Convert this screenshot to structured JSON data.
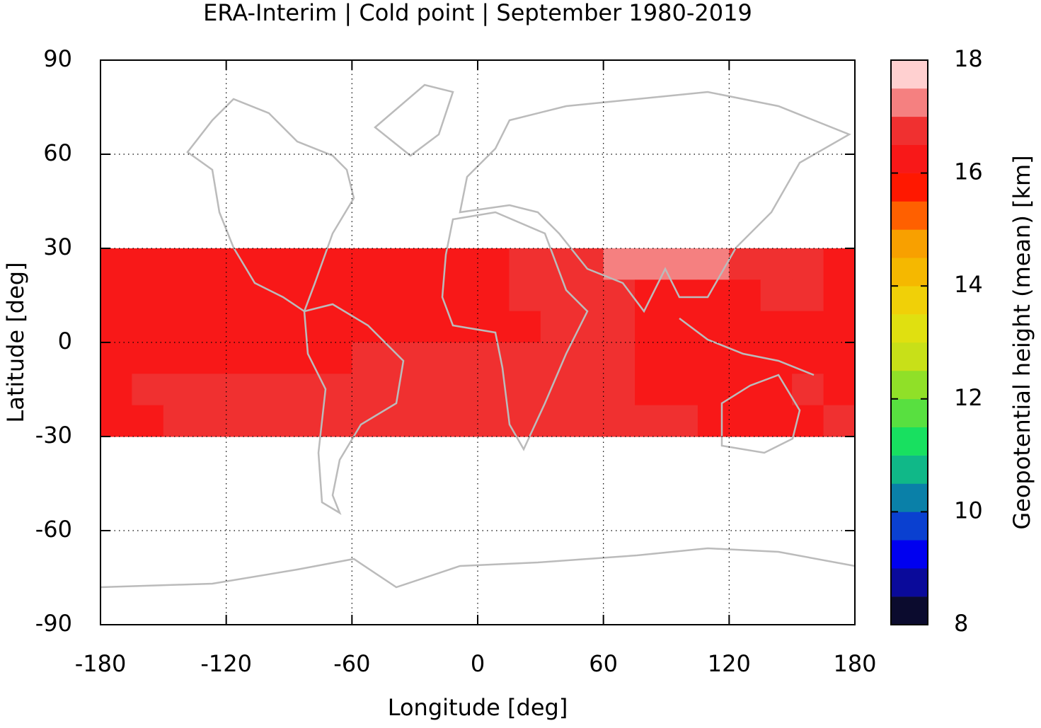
{
  "chart_data": {
    "type": "heatmap",
    "title": "ERA-Interim | Cold point | September 1980-2019",
    "xlabel": "Longitude [deg]",
    "ylabel": "Latitude [deg]",
    "xlim": [
      -180,
      180
    ],
    "ylim": [
      -90,
      90
    ],
    "xticks": [
      -180,
      -120,
      -60,
      0,
      60,
      120,
      180
    ],
    "yticks": [
      -90,
      -60,
      -30,
      0,
      30,
      60,
      90
    ],
    "grid": true,
    "x": [
      -172.5,
      -157.5,
      -142.5,
      -127.5,
      -112.5,
      -97.5,
      -82.5,
      -67.5,
      -52.5,
      -37.5,
      -22.5,
      -7.5,
      7.5,
      22.5,
      37.5,
      52.5,
      67.5,
      82.5,
      97.5,
      112.5,
      127.5,
      142.5,
      157.5,
      172.5
    ],
    "y": [
      25,
      15,
      5,
      -5,
      -15,
      -25
    ],
    "values": [
      [
        16.3,
        16.3,
        16.3,
        16.3,
        16.3,
        16.3,
        16.3,
        16.3,
        16.3,
        16.3,
        16.3,
        16.3,
        16.3,
        16.7,
        16.7,
        16.7,
        17.2,
        17.2,
        17.2,
        17.2,
        16.7,
        16.7,
        16.7,
        16.3
      ],
      [
        16.3,
        16.3,
        16.3,
        16.3,
        16.3,
        16.3,
        16.3,
        16.3,
        16.3,
        16.3,
        16.3,
        16.3,
        16.3,
        16.7,
        16.7,
        16.7,
        16.7,
        16.3,
        16.3,
        16.3,
        16.3,
        16.7,
        16.7,
        16.3
      ],
      [
        16.3,
        16.3,
        16.3,
        16.3,
        16.3,
        16.3,
        16.3,
        16.3,
        16.3,
        16.3,
        16.3,
        16.3,
        16.3,
        16.3,
        16.7,
        16.7,
        16.7,
        16.3,
        16.3,
        16.3,
        16.3,
        16.3,
        16.3,
        16.3
      ],
      [
        16.3,
        16.3,
        16.3,
        16.3,
        16.3,
        16.3,
        16.3,
        16.3,
        16.7,
        16.7,
        16.7,
        16.7,
        16.7,
        16.7,
        16.7,
        16.7,
        16.7,
        16.3,
        16.3,
        16.3,
        16.3,
        16.3,
        16.3,
        16.3
      ],
      [
        16.3,
        16.7,
        16.7,
        16.7,
        16.7,
        16.7,
        16.7,
        16.7,
        16.7,
        16.7,
        16.7,
        16.7,
        16.7,
        16.7,
        16.7,
        16.7,
        16.7,
        16.3,
        16.3,
        16.3,
        16.3,
        16.3,
        16.7,
        16.3
      ],
      [
        16.3,
        16.3,
        16.7,
        16.7,
        16.7,
        16.7,
        16.7,
        16.7,
        16.7,
        16.7,
        16.7,
        16.7,
        16.7,
        16.7,
        16.7,
        16.7,
        16.7,
        16.7,
        16.7,
        16.3,
        16.3,
        16.3,
        16.3,
        16.7
      ]
    ],
    "colorbar": {
      "label": "Geopotential height (mean) [km]",
      "ticks": [
        8,
        10,
        12,
        14,
        16,
        18
      ],
      "levels": [
        8,
        8.5,
        9,
        9.5,
        10,
        10.5,
        11,
        11.5,
        12,
        12.5,
        13,
        13.5,
        14,
        14.5,
        15,
        15.5,
        16,
        16.5,
        17,
        17.5,
        18
      ],
      "colors": [
        "#0b0b2e",
        "#0a0a9a",
        "#0000f0",
        "#0a40d0",
        "#0a80a8",
        "#10b888",
        "#18e060",
        "#58e040",
        "#90e028",
        "#c8e018",
        "#e0e010",
        "#f0d008",
        "#f5b800",
        "#f8a000",
        "#ff6000",
        "#ff1800",
        "#f81818",
        "#f03030",
        "#f58080",
        "#ffd0d0"
      ]
    }
  }
}
